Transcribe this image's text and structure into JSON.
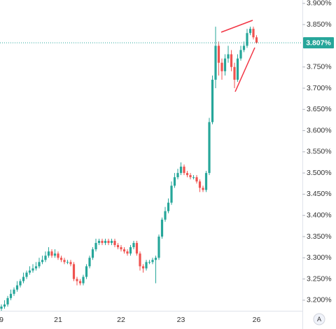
{
  "chart_data": {
    "type": "candlestick",
    "categories": [
      "9",
      null,
      null,
      null,
      null,
      null,
      null,
      null,
      null,
      null,
      null,
      null,
      null,
      null,
      null,
      null,
      null,
      null,
      "21",
      null,
      null,
      null,
      null,
      null,
      null,
      null,
      null,
      null,
      null,
      null,
      null,
      null,
      null,
      null,
      null,
      null,
      null,
      null,
      "22",
      null,
      null,
      null,
      null,
      null,
      null,
      null,
      null,
      null,
      null,
      null,
      null,
      null,
      null,
      null,
      null,
      null,
      null,
      "23",
      null,
      null,
      null,
      null,
      null,
      null,
      null,
      null,
      null,
      null,
      null,
      null,
      null,
      null,
      null,
      null,
      null,
      null,
      null,
      null,
      null,
      null,
      null,
      "26"
    ],
    "open": [
      3.18,
      3.185,
      3.19,
      3.205,
      3.215,
      3.225,
      3.235,
      3.245,
      3.255,
      3.265,
      3.27,
      3.275,
      3.28,
      3.29,
      3.295,
      3.305,
      3.315,
      3.305,
      3.31,
      3.3,
      3.295,
      3.29,
      3.29,
      3.285,
      3.25,
      3.245,
      3.24,
      3.255,
      3.28,
      3.3,
      3.32,
      3.335,
      3.34,
      3.335,
      3.34,
      3.335,
      3.34,
      3.33,
      3.325,
      3.32,
      3.315,
      3.31,
      3.325,
      3.335,
      3.31,
      3.28,
      3.275,
      3.29,
      3.29,
      3.295,
      3.3,
      3.35,
      3.39,
      3.41,
      3.43,
      3.47,
      3.49,
      3.5,
      3.515,
      3.5,
      3.495,
      3.49,
      3.49,
      3.48,
      3.465,
      3.46,
      3.5,
      3.62,
      3.72,
      3.8,
      3.76,
      3.74,
      3.77,
      3.78,
      3.75,
      3.72,
      3.77,
      3.79,
      3.8,
      3.83,
      3.84,
      3.82
    ],
    "high": [
      3.19,
      3.2,
      3.21,
      3.225,
      3.23,
      3.245,
      3.25,
      3.265,
      3.27,
      3.28,
      3.285,
      3.29,
      3.3,
      3.305,
      3.315,
      3.325,
      3.32,
      3.32,
      3.315,
      3.305,
      3.3,
      3.295,
      3.295,
      3.29,
      3.255,
      3.25,
      3.26,
      3.285,
      3.305,
      3.325,
      3.345,
      3.345,
      3.345,
      3.345,
      3.345,
      3.345,
      3.345,
      3.335,
      3.33,
      3.325,
      3.32,
      3.33,
      3.34,
      3.34,
      3.315,
      3.285,
      3.295,
      3.295,
      3.3,
      3.305,
      3.355,
      3.395,
      3.42,
      3.44,
      3.48,
      3.5,
      3.51,
      3.525,
      3.52,
      3.505,
      3.5,
      3.495,
      3.495,
      3.485,
      3.47,
      3.505,
      3.63,
      3.73,
      3.845,
      3.81,
      3.77,
      3.78,
      3.8,
      3.79,
      3.76,
      3.78,
      3.8,
      3.81,
      3.84,
      3.845,
      3.845,
      3.825
    ],
    "low": [
      3.175,
      3.18,
      3.185,
      3.2,
      3.21,
      3.22,
      3.23,
      3.24,
      3.25,
      3.26,
      3.265,
      3.27,
      3.275,
      3.285,
      3.29,
      3.3,
      3.3,
      3.3,
      3.295,
      3.29,
      3.285,
      3.285,
      3.28,
      3.245,
      3.235,
      3.235,
      3.235,
      3.25,
      3.275,
      3.295,
      3.315,
      3.33,
      3.33,
      3.33,
      3.33,
      3.33,
      3.325,
      3.32,
      3.315,
      3.31,
      3.305,
      3.305,
      3.32,
      3.305,
      3.27,
      3.265,
      3.27,
      3.285,
      3.285,
      3.24,
      3.295,
      3.345,
      3.385,
      3.405,
      3.425,
      3.465,
      3.485,
      3.495,
      3.495,
      3.49,
      3.485,
      3.485,
      3.475,
      3.455,
      3.455,
      3.455,
      3.495,
      3.615,
      3.7,
      3.73,
      3.72,
      3.73,
      3.76,
      3.74,
      3.7,
      3.715,
      3.765,
      3.785,
      3.795,
      3.825,
      3.815,
      3.805
    ],
    "close": [
      3.185,
      3.19,
      3.205,
      3.215,
      3.225,
      3.235,
      3.245,
      3.255,
      3.265,
      3.27,
      3.275,
      3.28,
      3.29,
      3.295,
      3.305,
      3.315,
      3.305,
      3.31,
      3.3,
      3.295,
      3.29,
      3.29,
      3.285,
      3.25,
      3.245,
      3.24,
      3.255,
      3.28,
      3.3,
      3.32,
      3.335,
      3.34,
      3.335,
      3.34,
      3.335,
      3.34,
      3.33,
      3.325,
      3.32,
      3.315,
      3.31,
      3.325,
      3.335,
      3.31,
      3.28,
      3.275,
      3.29,
      3.29,
      3.295,
      3.3,
      3.35,
      3.39,
      3.41,
      3.43,
      3.47,
      3.49,
      3.5,
      3.515,
      3.5,
      3.495,
      3.49,
      3.49,
      3.48,
      3.465,
      3.46,
      3.5,
      3.62,
      3.72,
      3.8,
      3.76,
      3.74,
      3.77,
      3.78,
      3.75,
      3.72,
      3.77,
      3.79,
      3.8,
      3.83,
      3.84,
      3.82,
      3.807
    ],
    "up_color": "#26a69a",
    "down_color": "#ef5350",
    "ylim": [
      3.175,
      3.908
    ],
    "yticks": [
      {
        "value": 3.2,
        "label": "3.200%"
      },
      {
        "value": 3.25,
        "label": "3.250%"
      },
      {
        "value": 3.3,
        "label": "3.300%"
      },
      {
        "value": 3.35,
        "label": "3.350%"
      },
      {
        "value": 3.4,
        "label": "3.400%"
      },
      {
        "value": 3.45,
        "label": "3.450%"
      },
      {
        "value": 3.5,
        "label": "3.500%"
      },
      {
        "value": 3.55,
        "label": "3.550%"
      },
      {
        "value": 3.6,
        "label": "3.600%"
      },
      {
        "value": 3.65,
        "label": "3.650%"
      },
      {
        "value": 3.7,
        "label": "3.700%"
      },
      {
        "value": 3.75,
        "label": "3.750%"
      },
      {
        "value": 3.85,
        "label": "3.850%"
      },
      {
        "value": 3.9,
        "label": "3.900%"
      }
    ],
    "last_price": {
      "value": 3.807,
      "label": "3.807%"
    },
    "last_price_color": "#26a69a",
    "scale_button": "A"
  }
}
